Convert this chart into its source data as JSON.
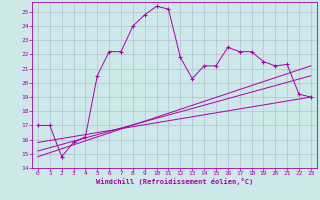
{
  "xlabel": "Windchill (Refroidissement éolien,°C)",
  "xlim": [
    -0.5,
    23.5
  ],
  "ylim": [
    14,
    25.7
  ],
  "xticks": [
    0,
    1,
    2,
    3,
    4,
    5,
    6,
    7,
    8,
    9,
    10,
    11,
    12,
    13,
    14,
    15,
    16,
    17,
    18,
    19,
    20,
    21,
    22,
    23
  ],
  "yticks": [
    14,
    15,
    16,
    17,
    18,
    19,
    20,
    21,
    22,
    23,
    24,
    25
  ],
  "bg_color": "#cce8e8",
  "line_color": "#aa00aa",
  "grid_color": "#aaaacc",
  "main_x": [
    0,
    1,
    2,
    3,
    4,
    5,
    6,
    7,
    8,
    9,
    10,
    11,
    12,
    13,
    14,
    15,
    16,
    17,
    18,
    19,
    20,
    21,
    22,
    23
  ],
  "main_y": [
    17.0,
    17.0,
    14.8,
    15.8,
    16.2,
    20.5,
    22.2,
    22.2,
    24.0,
    24.8,
    25.4,
    25.2,
    21.8,
    20.3,
    21.2,
    21.2,
    22.5,
    22.2,
    22.2,
    21.5,
    21.2,
    21.3,
    19.2,
    19.0
  ],
  "line1_x": [
    0,
    23
  ],
  "line1_y": [
    14.8,
    21.2
  ],
  "line2_x": [
    0,
    23
  ],
  "line2_y": [
    15.2,
    20.5
  ],
  "line3_x": [
    0,
    23
  ],
  "line3_y": [
    15.8,
    19.0
  ]
}
